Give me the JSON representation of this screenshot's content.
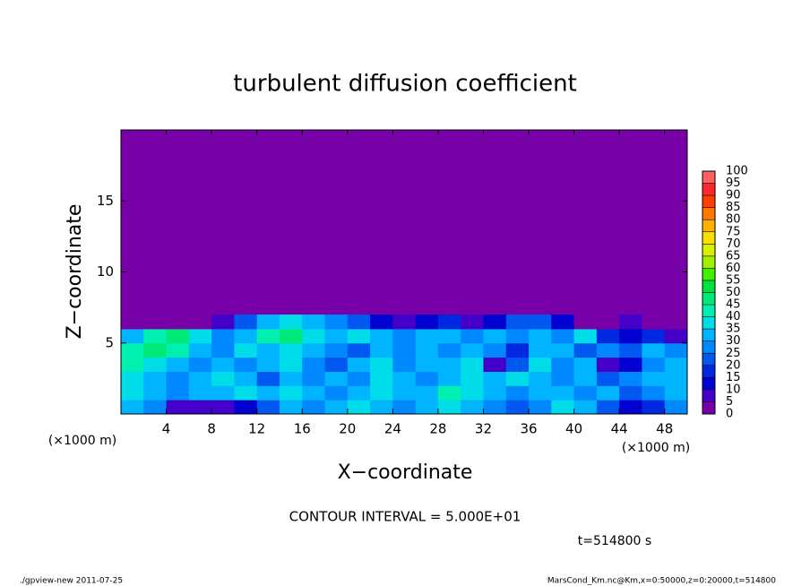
{
  "chart_data": {
    "type": "heatmap",
    "title": "turbulent diffusion coefficient",
    "xlabel": "X−coordinate",
    "ylabel": "Z−coordinate",
    "x_unit_labels": [
      "(×1000 m)",
      "(×1000 m)"
    ],
    "xlim": [
      0,
      50
    ],
    "xticks": [
      4,
      8,
      12,
      16,
      20,
      24,
      28,
      32,
      36,
      40,
      44,
      48
    ],
    "ylim": [
      0,
      20
    ],
    "yticks": [
      5,
      10,
      15
    ],
    "x": [
      1,
      3,
      5,
      7,
      9,
      11,
      13,
      15,
      17,
      19,
      21,
      23,
      25,
      27,
      29,
      31,
      33,
      35,
      37,
      39,
      41,
      43,
      45,
      47,
      49
    ],
    "z": [
      0.5,
      1.5,
      2.5,
      3.5,
      4.5,
      5.5,
      6.5
    ],
    "values": [
      [
        30,
        25,
        5,
        5,
        5,
        10,
        20,
        30,
        25,
        30,
        35,
        30,
        25,
        30,
        35,
        30,
        25,
        20,
        25,
        35,
        30,
        20,
        10,
        15,
        25
      ],
      [
        35,
        30,
        25,
        30,
        30,
        35,
        30,
        35,
        30,
        25,
        30,
        35,
        30,
        30,
        40,
        35,
        30,
        25,
        30,
        30,
        25,
        30,
        20,
        25,
        30
      ],
      [
        35,
        30,
        25,
        30,
        35,
        30,
        20,
        30,
        25,
        30,
        25,
        35,
        30,
        25,
        30,
        35,
        30,
        35,
        30,
        25,
        30,
        20,
        25,
        30,
        30
      ],
      [
        40,
        35,
        30,
        25,
        30,
        25,
        30,
        35,
        25,
        20,
        30,
        35,
        25,
        30,
        30,
        35,
        5,
        20,
        35,
        25,
        30,
        5,
        10,
        25,
        30
      ],
      [
        40,
        45,
        40,
        30,
        25,
        35,
        30,
        35,
        30,
        25,
        20,
        30,
        25,
        30,
        25,
        30,
        25,
        15,
        30,
        30,
        20,
        25,
        20,
        30,
        25
      ],
      [
        30,
        40,
        45,
        35,
        25,
        30,
        40,
        45,
        35,
        30,
        35,
        30,
        25,
        30,
        30,
        25,
        30,
        25,
        30,
        25,
        35,
        15,
        10,
        15,
        5
      ],
      [
        0,
        0,
        0,
        0,
        5,
        20,
        30,
        35,
        30,
        25,
        20,
        10,
        5,
        10,
        15,
        5,
        10,
        20,
        20,
        10,
        0,
        0,
        5,
        0,
        0
      ]
    ],
    "levels": [
      0,
      5,
      10,
      15,
      20,
      25,
      30,
      35,
      40,
      45,
      50,
      55,
      60,
      65,
      70,
      75,
      80,
      85,
      90,
      95,
      100
    ],
    "colors": [
      "#7800a8",
      "#4400c8",
      "#0000d0",
      "#0028e0",
      "#0058f0",
      "#0088ff",
      "#00b4ff",
      "#00dce8",
      "#00f0b0",
      "#00e878",
      "#00e040",
      "#40f000",
      "#a0f000",
      "#d8f000",
      "#f8e000",
      "#ffb000",
      "#ff7800",
      "#ff4000",
      "#ff2828",
      "#ff6060",
      "#ff9898"
    ],
    "contour_interval_text": "CONTOUR INTERVAL = 5.000E+01",
    "time_text": "t=514800 s",
    "footer_left": "./gpview-new  2011-07-25",
    "footer_right": "MarsCond_Km.nc@Km,x=0:50000,z=0:20000,t=514800"
  }
}
